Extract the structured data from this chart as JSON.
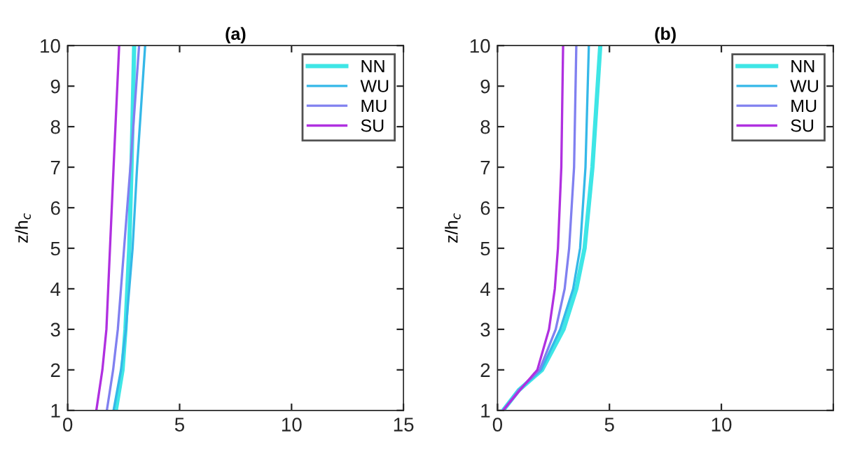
{
  "chart_data": [
    {
      "type": "line",
      "title": "(a)",
      "ylabel": "z/h$_{c}$",
      "xlim": [
        0,
        15
      ],
      "ylim": [
        1,
        10
      ],
      "xticks": [
        0,
        5,
        10,
        15
      ],
      "yticks": [
        1,
        2,
        3,
        4,
        5,
        6,
        7,
        8,
        9,
        10
      ],
      "grid": false,
      "legend": "top right",
      "marker": "none",
      "line_style": "solid",
      "series": [
        {
          "name": "NN",
          "color": "#3ee6e6",
          "x": [
            2.15,
            2.45,
            2.58,
            2.75,
            2.85,
            2.97
          ],
          "values": [
            1,
            2,
            3,
            5,
            7,
            10
          ]
        },
        {
          "name": "WU",
          "color": "#35b8e8",
          "x": [
            2.05,
            2.38,
            2.6,
            2.9,
            3.1,
            3.46
          ],
          "values": [
            1,
            2,
            3,
            5,
            7,
            10
          ]
        },
        {
          "name": "MU",
          "color": "#8080f0",
          "x": [
            1.75,
            2.03,
            2.24,
            2.52,
            2.8,
            3.19
          ],
          "values": [
            1,
            2,
            3,
            5,
            7,
            10
          ]
        },
        {
          "name": "SU",
          "color": "#b030e0",
          "x": [
            1.28,
            1.55,
            1.73,
            1.89,
            2.05,
            2.3
          ],
          "values": [
            1,
            2,
            3,
            5,
            7,
            10
          ]
        }
      ]
    },
    {
      "type": "line",
      "title": "(b)",
      "ylabel": "z/h$_{c}$",
      "xlim": [
        0,
        15
      ],
      "ylim": [
        1,
        10
      ],
      "xticks": [
        0,
        5,
        10,
        {
          "value": 15,
          "label": null
        }
      ],
      "yticks": [
        1,
        2,
        3,
        4,
        5,
        6,
        7,
        8,
        9,
        10
      ],
      "grid": false,
      "legend": "top right",
      "marker": "none",
      "line_style": "solid",
      "series": [
        {
          "name": "NN",
          "color": "#3ee6e6",
          "x": [
            0.25,
            0.95,
            1.99,
            2.95,
            3.52,
            3.89,
            4.24,
            4.59
          ],
          "values": [
            1,
            1.5,
            2,
            3,
            4,
            5,
            7,
            10
          ]
        },
        {
          "name": "WU",
          "color": "#35b8e8",
          "x": [
            0.25,
            0.95,
            1.95,
            2.8,
            3.38,
            3.69,
            3.93,
            4.08
          ],
          "values": [
            1,
            1.5,
            2,
            3,
            4,
            5,
            7,
            10
          ]
        },
        {
          "name": "MU",
          "color": "#8080f0",
          "x": [
            0.25,
            0.95,
            1.88,
            2.6,
            3.0,
            3.2,
            3.42,
            3.52
          ],
          "values": [
            1,
            1.5,
            2,
            3,
            4,
            5,
            7,
            10
          ]
        },
        {
          "name": "SU",
          "color": "#b030e0",
          "x": [
            0.25,
            1.0,
            1.78,
            2.3,
            2.56,
            2.7,
            2.85,
            2.93
          ],
          "values": [
            1,
            1.5,
            2,
            3,
            4,
            5,
            7,
            10
          ]
        }
      ]
    }
  ]
}
